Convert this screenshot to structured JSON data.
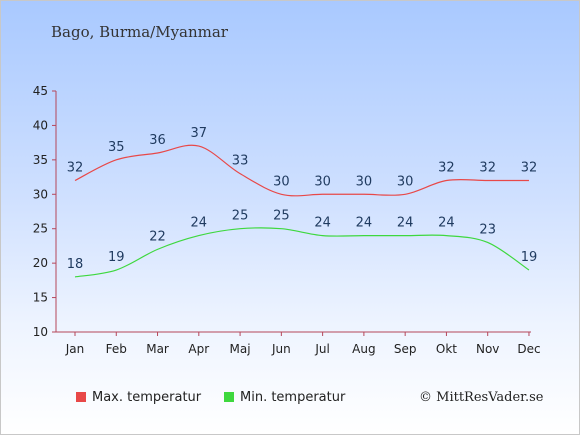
{
  "title": "Bago, Burma/Myanmar",
  "credit": "© MittResVader.se",
  "legend": [
    {
      "name": "Max. temperatur",
      "color": "#e84848"
    },
    {
      "name": "Min. temperatur",
      "color": "#3ed83e"
    }
  ],
  "chart_data": {
    "type": "line",
    "categories": [
      "Jan",
      "Feb",
      "Mar",
      "Apr",
      "Maj",
      "Jun",
      "Jul",
      "Aug",
      "Sep",
      "Okt",
      "Nov",
      "Dec"
    ],
    "series": [
      {
        "name": "Max. temperatur",
        "color": "#e84848",
        "values": [
          32,
          35,
          36,
          37,
          33,
          30,
          30,
          30,
          30,
          32,
          32,
          32
        ]
      },
      {
        "name": "Min. temperatur",
        "color": "#3ed83e",
        "values": [
          18,
          19,
          22,
          24,
          25,
          25,
          24,
          24,
          24,
          24,
          23,
          19
        ]
      }
    ],
    "ylim": [
      10,
      45
    ],
    "yticks": [
      10,
      15,
      20,
      25,
      30,
      35,
      40,
      45
    ],
    "grid": false,
    "legend_position": "bottom"
  }
}
